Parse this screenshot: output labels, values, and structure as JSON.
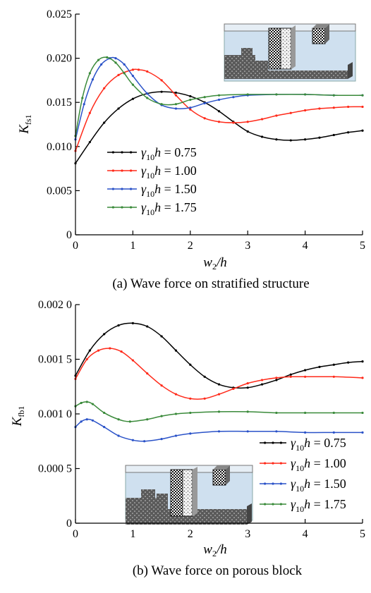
{
  "colors": {
    "c075": "#000000",
    "c100": "#ff2a1a",
    "c150": "#2a52c8",
    "c175": "#3a8a3a"
  },
  "chart_data": [
    {
      "type": "line",
      "caption": "(a) Wave force on stratified structure",
      "xlabel": "w2/h",
      "ylabel": "Kfs1",
      "xlim": [
        0,
        5
      ],
      "ylim": [
        0,
        0.025
      ],
      "xticks": [
        0,
        1,
        2,
        3,
        4,
        5
      ],
      "xtick_labels": [
        "0",
        "1",
        "2",
        "3",
        "4",
        "5"
      ],
      "yticks": [
        0,
        0.005,
        0.01,
        0.015,
        0.02,
        0.025
      ],
      "ytick_labels": [
        "0",
        "0.005",
        "0.010",
        "0.015",
        "0.020",
        "0.025"
      ],
      "legend": {
        "position": "left-middle",
        "entries": [
          "γ10h = 0.75",
          "γ10h = 1.00",
          "γ10h = 1.50",
          "γ10h = 1.75"
        ]
      },
      "series": [
        {
          "name": "γ10h = 0.75",
          "color": "#000000",
          "x": [
            0,
            0.25,
            0.5,
            0.75,
            1.0,
            1.25,
            1.5,
            1.75,
            2.0,
            2.25,
            2.5,
            2.75,
            3.0,
            3.25,
            3.5,
            3.75,
            4.0,
            4.25,
            4.5,
            4.75,
            5.0
          ],
          "y": [
            0.0081,
            0.0105,
            0.0127,
            0.0143,
            0.0154,
            0.016,
            0.0162,
            0.0161,
            0.0157,
            0.015,
            0.014,
            0.0128,
            0.0117,
            0.0111,
            0.0108,
            0.0107,
            0.0108,
            0.011,
            0.0113,
            0.0116,
            0.0118
          ]
        },
        {
          "name": "γ10h = 1.00",
          "color": "#ff2a1a",
          "x": [
            0,
            0.25,
            0.5,
            0.75,
            1.0,
            1.1,
            1.25,
            1.5,
            1.75,
            2.0,
            2.25,
            2.5,
            2.75,
            3.0,
            3.25,
            3.5,
            3.75,
            4.0,
            4.25,
            4.5,
            4.75,
            5.0
          ],
          "y": [
            0.0095,
            0.0138,
            0.0166,
            0.0181,
            0.0187,
            0.0187,
            0.0185,
            0.0175,
            0.0158,
            0.0142,
            0.0132,
            0.0128,
            0.0127,
            0.0128,
            0.0131,
            0.0135,
            0.0138,
            0.0141,
            0.0143,
            0.0144,
            0.0145,
            0.0145
          ]
        },
        {
          "name": "γ10h = 1.50",
          "color": "#2a52c8",
          "x": [
            0,
            0.15,
            0.3,
            0.45,
            0.6,
            0.7,
            0.85,
            1.0,
            1.25,
            1.5,
            1.75,
            2.0,
            2.25,
            2.5,
            2.75,
            3.0,
            3.5,
            4.0,
            4.5,
            5.0
          ],
          "y": [
            0.0108,
            0.0148,
            0.0176,
            0.0193,
            0.02,
            0.02,
            0.0193,
            0.018,
            0.016,
            0.0147,
            0.0143,
            0.0144,
            0.0149,
            0.0153,
            0.0156,
            0.0158,
            0.0159,
            0.0159,
            0.0158,
            0.0158
          ]
        },
        {
          "name": "γ10h = 1.75",
          "color": "#3a8a3a",
          "x": [
            0,
            0.12,
            0.25,
            0.4,
            0.55,
            0.7,
            0.85,
            1.0,
            1.25,
            1.5,
            1.75,
            2.0,
            2.25,
            2.5,
            3.0,
            3.5,
            4.0,
            4.5,
            5.0
          ],
          "y": [
            0.0112,
            0.0155,
            0.0183,
            0.0198,
            0.0201,
            0.0195,
            0.0183,
            0.017,
            0.0155,
            0.0148,
            0.0148,
            0.0153,
            0.0156,
            0.0158,
            0.0159,
            0.0159,
            0.0159,
            0.0158,
            0.0158
          ]
        }
      ]
    },
    {
      "type": "line",
      "caption": "(b) Wave force on porous block",
      "xlabel": "w2/h",
      "ylabel": "Kfb1",
      "xlim": [
        0,
        5
      ],
      "ylim": [
        0,
        0.002
      ],
      "xticks": [
        0,
        1,
        2,
        3,
        4,
        5
      ],
      "xtick_labels": [
        "0",
        "1",
        "2",
        "3",
        "4",
        "5"
      ],
      "yticks": [
        0,
        0.0005,
        0.001,
        0.0015,
        0.002
      ],
      "ytick_labels": [
        "0",
        "0.000 5",
        "0.001 0",
        "0.001 5",
        "0.002 0"
      ],
      "legend": {
        "position": "bottom-right",
        "entries": [
          "γ10h = 0.75",
          "γ10h = 1.00",
          "γ10h = 1.50",
          "γ10h = 1.75"
        ]
      },
      "series": [
        {
          "name": "γ10h = 0.75",
          "color": "#000000",
          "x": [
            0,
            0.25,
            0.5,
            0.75,
            1.0,
            1.25,
            1.5,
            1.75,
            2.0,
            2.25,
            2.5,
            2.75,
            3.0,
            3.25,
            3.5,
            3.75,
            4.0,
            4.25,
            4.5,
            4.75,
            5.0
          ],
          "y": [
            0.00135,
            0.00158,
            0.00173,
            0.00181,
            0.00183,
            0.0018,
            0.00171,
            0.00158,
            0.00145,
            0.00134,
            0.00127,
            0.00124,
            0.00124,
            0.00127,
            0.00131,
            0.00136,
            0.0014,
            0.00143,
            0.00145,
            0.00147,
            0.00148
          ]
        },
        {
          "name": "γ10h = 1.00",
          "color": "#ff2a1a",
          "x": [
            0,
            0.2,
            0.4,
            0.6,
            0.8,
            1.0,
            1.25,
            1.5,
            1.75,
            2.0,
            2.25,
            2.5,
            2.75,
            3.0,
            3.25,
            3.5,
            3.75,
            4.0,
            4.5,
            5.0
          ],
          "y": [
            0.00132,
            0.0015,
            0.00158,
            0.0016,
            0.00157,
            0.00149,
            0.00137,
            0.00126,
            0.00118,
            0.00114,
            0.00114,
            0.00118,
            0.00123,
            0.00128,
            0.00131,
            0.00133,
            0.00134,
            0.00134,
            0.00134,
            0.00133
          ]
        },
        {
          "name": "γ10h = 1.50",
          "color": "#2a52c8",
          "x": [
            0,
            0.1,
            0.2,
            0.3,
            0.5,
            0.75,
            1.0,
            1.2,
            1.5,
            1.75,
            2.0,
            2.5,
            3.0,
            3.5,
            4.0,
            4.5,
            5.0
          ],
          "y": [
            0.00088,
            0.00093,
            0.00095,
            0.00094,
            0.00088,
            0.0008,
            0.00076,
            0.00075,
            0.00077,
            0.0008,
            0.00082,
            0.00084,
            0.00084,
            0.00084,
            0.00083,
            0.00083,
            0.00083
          ]
        },
        {
          "name": "γ10h = 1.75",
          "color": "#3a8a3a",
          "x": [
            0,
            0.1,
            0.2,
            0.3,
            0.5,
            0.75,
            0.95,
            1.25,
            1.5,
            1.75,
            2.0,
            2.5,
            3.0,
            3.5,
            4.0,
            4.5,
            5.0
          ],
          "y": [
            0.00107,
            0.0011,
            0.00111,
            0.00109,
            0.00101,
            0.00095,
            0.00093,
            0.00095,
            0.00098,
            0.001,
            0.00101,
            0.00102,
            0.00102,
            0.00101,
            0.00101,
            0.00101,
            0.00101
          ]
        }
      ]
    }
  ]
}
